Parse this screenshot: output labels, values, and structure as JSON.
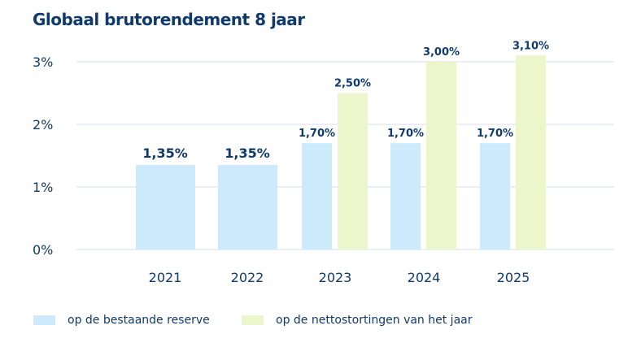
{
  "title": "Globaal brutorendement 8 jaar",
  "chart_data": {
    "type": "bar",
    "title": "Globaal brutorendement 8 jaar",
    "categories": [
      "2021",
      "2022",
      "2023",
      "2024",
      "2025"
    ],
    "series": [
      {
        "name": "op de bestaande reserve",
        "color": "#cdeafc",
        "values": [
          1.35,
          1.35,
          1.7,
          1.7,
          1.7
        ],
        "labels": [
          "1,35%",
          "1,35%",
          "1,70%",
          "1,70%",
          "1,70%"
        ]
      },
      {
        "name": "op de nettostortingen van het jaar",
        "color": "#ecf5cb",
        "values": [
          null,
          null,
          2.5,
          3.0,
          3.1
        ],
        "labels": [
          null,
          null,
          "2,50%",
          "3,00%",
          "3,10%"
        ]
      }
    ],
    "yticks": [
      "0%",
      "1%",
      "2%",
      "3%"
    ],
    "ylim": [
      0,
      3.3
    ],
    "grid": true,
    "legend": "bottom-left",
    "text_color": "#0f3a6b"
  }
}
